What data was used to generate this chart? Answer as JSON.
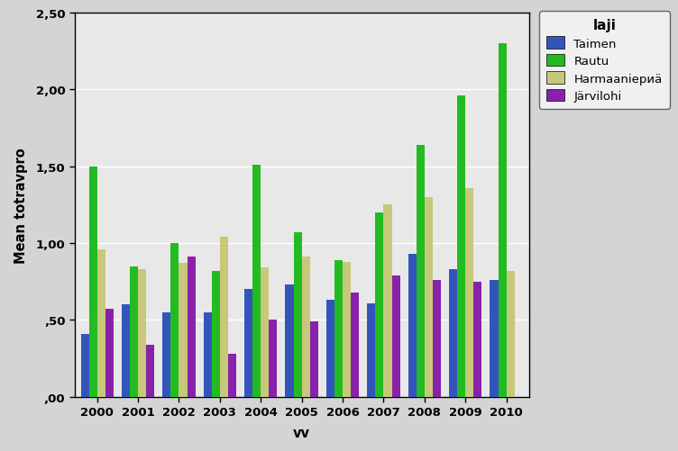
{
  "years": [
    2000,
    2001,
    2002,
    2003,
    2004,
    2005,
    2006,
    2007,
    2008,
    2009,
    2010
  ],
  "series": {
    "Taimen": [
      0.41,
      0.6,
      0.55,
      0.55,
      0.7,
      0.73,
      0.63,
      0.61,
      0.93,
      0.83,
      0.76
    ],
    "Rautu": [
      1.5,
      0.85,
      1.0,
      0.82,
      1.51,
      1.07,
      0.89,
      1.2,
      1.64,
      1.96,
      2.3
    ],
    "Harmaanieria": [
      0.96,
      0.83,
      0.87,
      1.04,
      0.84,
      0.91,
      0.88,
      1.25,
      1.3,
      1.36,
      0.82
    ],
    "Jarvilohi": [
      0.57,
      0.34,
      0.91,
      0.28,
      0.5,
      0.49,
      0.68,
      0.79,
      0.76,
      0.75,
      0.0
    ]
  },
  "series_labels": [
    "Taimen",
    "Rautu",
    "Harmaaniериä",
    "Järvilohi"
  ],
  "colors": {
    "Taimen": "#3355bb",
    "Rautu": "#22bb22",
    "Harmaanieria": "#c8c87a",
    "Jarvilohi": "#8822aa"
  },
  "ylabel": "Mean totravpro",
  "xlabel": "vv",
  "legend_title": "laji",
  "legend_labels": [
    "Taimen",
    "Rautu",
    "Harmaaniериä",
    "Järvilohi"
  ],
  "ylim": [
    0.0,
    2.5
  ],
  "yticks": [
    0.0,
    0.5,
    1.0,
    1.5,
    2.0,
    2.5
  ],
  "ytick_labels": [
    ",00",
    ",50",
    "1,00",
    "1,50",
    "2,00",
    "2,50"
  ],
  "bar_width": 0.2,
  "fig_bg_color": "#d4d4d4",
  "plot_bg_color": "#e8e8e8",
  "legend_bg_color": "#f0f0f0"
}
